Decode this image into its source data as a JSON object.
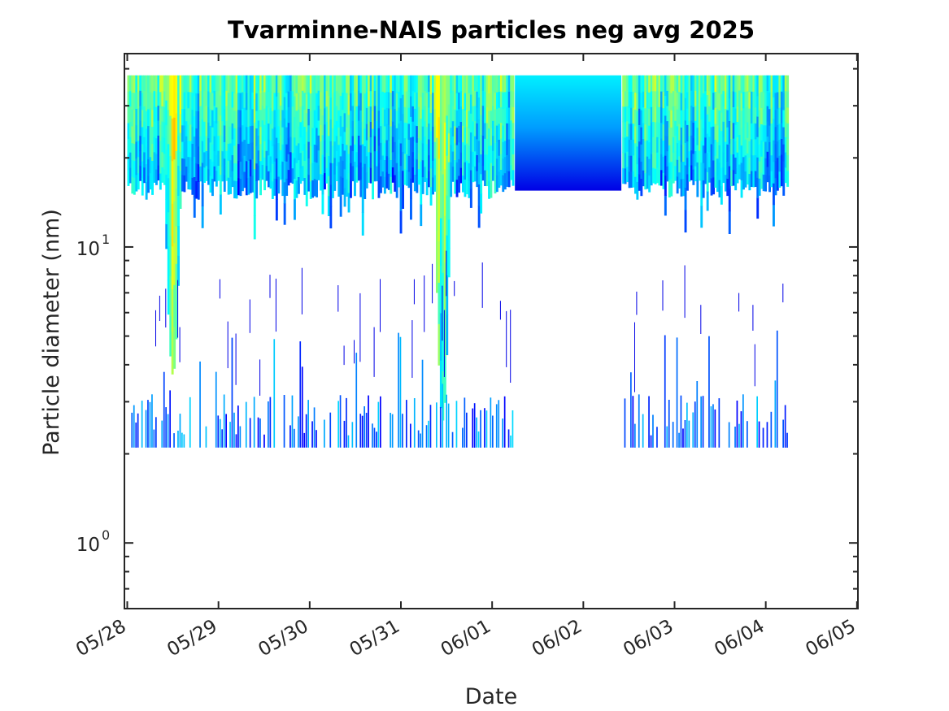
{
  "chart_data": {
    "type": "heatmap",
    "title": "Tvarminne-NAIS particles neg avg 2025",
    "xlabel": "Date",
    "ylabel": "Particle diameter (nm)",
    "x_scale": "date",
    "y_scale": "log",
    "xlim": [
      "05/27 23:15",
      "06/05 00:15"
    ],
    "ylim": [
      0.6,
      45
    ],
    "x_ticks": [
      "05/28",
      "05/29",
      "05/30",
      "05/31",
      "06/01",
      "06/02",
      "06/03",
      "06/04",
      "06/05"
    ],
    "y_ticks": [
      {
        "value": 1,
        "base": "10",
        "exponent": "0"
      },
      {
        "value": 10,
        "base": "10",
        "exponent": "1"
      }
    ],
    "grid": false,
    "colormap": "jet",
    "data_extent": {
      "x_start": "05/28 00:00",
      "x_end": "06/04 06:00",
      "y_min": 2.1,
      "y_max": 38
    },
    "data_gap": {
      "x_start": "06/01 06:00",
      "x_end": "06/02 10:00"
    },
    "filled_interval": {
      "x_start": "06/01 06:00",
      "x_end": "06/02 10:00",
      "y_min": 15.5,
      "y_max": 38
    },
    "nucleation_events": [
      {
        "start": "05/28 10:00",
        "end": "05/28 14:00",
        "min_diameter": 3.7
      },
      {
        "start": "05/31 09:00",
        "end": "05/31 13:00",
        "min_diameter": 2.6
      }
    ]
  }
}
